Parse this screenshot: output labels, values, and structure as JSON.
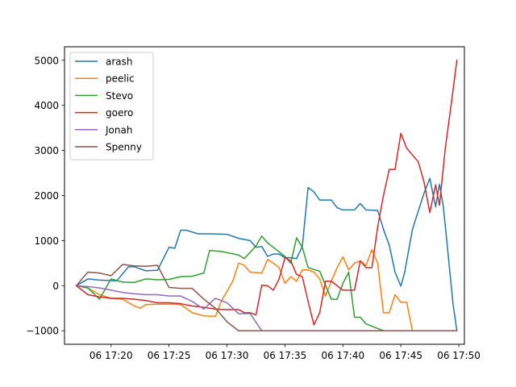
{
  "chart_data": {
    "type": "line",
    "title": "",
    "xlabel": "",
    "ylabel": "",
    "x_axis": {
      "type": "time",
      "range": [
        "06 17:15:59",
        "06 17:50:29"
      ],
      "ticks": [
        {
          "time": "06 17:20",
          "label": "06 17:20"
        },
        {
          "time": "06 17:25",
          "label": "06 17:25"
        },
        {
          "time": "06 17:30",
          "label": "06 17:30"
        },
        {
          "time": "06 17:35",
          "label": "06 17:35"
        },
        {
          "time": "06 17:40",
          "label": "06 17:40"
        },
        {
          "time": "06 17:45",
          "label": "06 17:45"
        },
        {
          "time": "06 17:50",
          "label": "06 17:50"
        }
      ]
    },
    "y_axis": {
      "range": [
        -1300,
        5300
      ],
      "ticks": [
        {
          "value": -1000,
          "label": "−1000"
        },
        {
          "value": 0,
          "label": "0"
        },
        {
          "value": 1000,
          "label": "1000"
        },
        {
          "value": 2000,
          "label": "2000"
        },
        {
          "value": 3000,
          "label": "3000"
        },
        {
          "value": 4000,
          "label": "4000"
        },
        {
          "value": 5000,
          "label": "5000"
        }
      ]
    },
    "grid": false,
    "legend": "upper-left",
    "series": [
      {
        "name": "arash",
        "color": "#1f77b4",
        "points": [
          [
            "06 17:17:00",
            0
          ],
          [
            "06 17:18:00",
            150
          ],
          [
            "06 17:19:00",
            125
          ],
          [
            "06 17:20:00",
            110
          ],
          [
            "06 17:20:30",
            110
          ],
          [
            "06 17:21:30",
            420
          ],
          [
            "06 17:22:00",
            420
          ],
          [
            "06 17:23:00",
            330
          ],
          [
            "06 17:24:00",
            340
          ],
          [
            "06 17:25:00",
            850
          ],
          [
            "06 17:25:30",
            830
          ],
          [
            "06 17:26:00",
            1230
          ],
          [
            "06 17:26:30",
            1230
          ],
          [
            "06 17:27:30",
            1150
          ],
          [
            "06 17:28:30",
            1150
          ],
          [
            "06 17:30:00",
            1140
          ],
          [
            "06 17:31:00",
            1050
          ],
          [
            "06 17:32:00",
            1000
          ],
          [
            "06 17:32:30",
            850
          ],
          [
            "06 17:33:00",
            870
          ],
          [
            "06 17:33:30",
            650
          ],
          [
            "06 17:34:00",
            700
          ],
          [
            "06 17:34:30",
            700
          ],
          [
            "06 17:35:00",
            620
          ],
          [
            "06 17:35:30",
            620
          ],
          [
            "06 17:36:00",
            600
          ],
          [
            "06 17:36:30",
            870
          ],
          [
            "06 17:37:00",
            2180
          ],
          [
            "06 17:37:30",
            2080
          ],
          [
            "06 17:38:00",
            1900
          ],
          [
            "06 17:39:00",
            1900
          ],
          [
            "06 17:39:30",
            1730
          ],
          [
            "06 17:40:00",
            1680
          ],
          [
            "06 17:41:00",
            1680
          ],
          [
            "06 17:41:30",
            1820
          ],
          [
            "06 17:42:00",
            1680
          ],
          [
            "06 17:43:00",
            1670
          ],
          [
            "06 17:43:30",
            1250
          ],
          [
            "06 17:44:00",
            900
          ],
          [
            "06 17:44:30",
            300
          ],
          [
            "06 17:45:00",
            -10
          ],
          [
            "06 17:45:20",
            300
          ],
          [
            "06 17:46:00",
            1250
          ],
          [
            "06 17:46:30",
            1650
          ],
          [
            "06 17:47:00",
            2050
          ],
          [
            "06 17:47:30",
            2380
          ],
          [
            "06 17:48:00",
            1750
          ],
          [
            "06 17:48:20",
            2250
          ],
          [
            "06 17:48:40",
            1750
          ],
          [
            "06 17:49:00",
            900
          ],
          [
            "06 17:49:30",
            -400
          ],
          [
            "06 17:49:50",
            -1000
          ]
        ]
      },
      {
        "name": "peelic",
        "color": "#ff7f0e",
        "points": [
          [
            "06 17:17:00",
            0
          ],
          [
            "06 17:18:00",
            -50
          ],
          [
            "06 17:19:00",
            -200
          ],
          [
            "06 17:20:00",
            -280
          ],
          [
            "06 17:21:00",
            -300
          ],
          [
            "06 17:22:00",
            -450
          ],
          [
            "06 17:22:30",
            -500
          ],
          [
            "06 17:23:00",
            -420
          ],
          [
            "06 17:24:00",
            -410
          ],
          [
            "06 17:25:00",
            -410
          ],
          [
            "06 17:26:00",
            -420
          ],
          [
            "06 17:27:00",
            -600
          ],
          [
            "06 17:28:00",
            -670
          ],
          [
            "06 17:29:00",
            -680
          ],
          [
            "06 17:29:30",
            -350
          ],
          [
            "06 17:30:30",
            100
          ],
          [
            "06 17:31:00",
            500
          ],
          [
            "06 17:31:30",
            450
          ],
          [
            "06 17:32:00",
            300
          ],
          [
            "06 17:33:00",
            280
          ],
          [
            "06 17:33:30",
            580
          ],
          [
            "06 17:34:00",
            500
          ],
          [
            "06 17:34:30",
            400
          ],
          [
            "06 17:35:00",
            50
          ],
          [
            "06 17:35:30",
            200
          ],
          [
            "06 17:36:00",
            100
          ],
          [
            "06 17:36:30",
            350
          ],
          [
            "06 17:37:00",
            350
          ],
          [
            "06 17:37:30",
            300
          ],
          [
            "06 17:38:00",
            150
          ],
          [
            "06 17:38:30",
            -230
          ],
          [
            "06 17:39:00",
            100
          ],
          [
            "06 17:39:30",
            400
          ],
          [
            "06 17:40:00",
            640
          ],
          [
            "06 17:40:30",
            350
          ],
          [
            "06 17:41:00",
            500
          ],
          [
            "06 17:41:30",
            550
          ],
          [
            "06 17:42:00",
            450
          ],
          [
            "06 17:42:30",
            800
          ],
          [
            "06 17:43:00",
            500
          ],
          [
            "06 17:43:30",
            -600
          ],
          [
            "06 17:44:00",
            -600
          ],
          [
            "06 17:44:30",
            -200
          ],
          [
            "06 17:45:00",
            -370
          ],
          [
            "06 17:45:30",
            -370
          ],
          [
            "06 17:46:00",
            -1000
          ],
          [
            "06 17:49:50",
            -1000
          ]
        ]
      },
      {
        "name": "Stevo",
        "color": "#2ca02c",
        "points": [
          [
            "06 17:17:00",
            0
          ],
          [
            "06 17:18:00",
            -50
          ],
          [
            "06 17:19:00",
            -300
          ],
          [
            "06 17:20:00",
            150
          ],
          [
            "06 17:21:00",
            80
          ],
          [
            "06 17:22:00",
            70
          ],
          [
            "06 17:23:00",
            150
          ],
          [
            "06 17:24:00",
            130
          ],
          [
            "06 17:25:00",
            140
          ],
          [
            "06 17:26:00",
            200
          ],
          [
            "06 17:27:00",
            210
          ],
          [
            "06 17:28:00",
            280
          ],
          [
            "06 17:28:30",
            780
          ],
          [
            "06 17:29:30",
            760
          ],
          [
            "06 17:31:00",
            680
          ],
          [
            "06 17:31:30",
            600
          ],
          [
            "06 17:32:30",
            880
          ],
          [
            "06 17:33:00",
            1100
          ],
          [
            "06 17:33:30",
            950
          ],
          [
            "06 17:34:00",
            850
          ],
          [
            "06 17:35:00",
            650
          ],
          [
            "06 17:35:30",
            500
          ],
          [
            "06 17:36:00",
            1060
          ],
          [
            "06 17:36:30",
            850
          ],
          [
            "06 17:37:00",
            400
          ],
          [
            "06 17:38:00",
            320
          ],
          [
            "06 17:39:00",
            -300
          ],
          [
            "06 17:39:30",
            -300
          ],
          [
            "06 17:40:00",
            50
          ],
          [
            "06 17:40:30",
            300
          ],
          [
            "06 17:41:00",
            -700
          ],
          [
            "06 17:41:30",
            -700
          ],
          [
            "06 17:42:00",
            -850
          ],
          [
            "06 17:43:00",
            -950
          ],
          [
            "06 17:43:30",
            -1000
          ],
          [
            "06 17:49:50",
            -1000
          ]
        ]
      },
      {
        "name": "goero",
        "color": "#d62728",
        "points": [
          [
            "06 17:17:00",
            0
          ],
          [
            "06 17:18:00",
            -200
          ],
          [
            "06 17:19:00",
            -250
          ],
          [
            "06 17:20:00",
            -280
          ],
          [
            "06 17:21:00",
            -280
          ],
          [
            "06 17:22:00",
            -300
          ],
          [
            "06 17:23:00",
            -330
          ],
          [
            "06 17:24:00",
            -380
          ],
          [
            "06 17:25:00",
            -380
          ],
          [
            "06 17:26:00",
            -400
          ],
          [
            "06 17:27:00",
            -450
          ],
          [
            "06 17:28:00",
            -480
          ],
          [
            "06 17:29:00",
            -520
          ],
          [
            "06 17:30:00",
            -530
          ],
          [
            "06 17:31:00",
            -530
          ],
          [
            "06 17:31:30",
            -600
          ],
          [
            "06 17:32:00",
            -600
          ],
          [
            "06 17:32:30",
            -650
          ],
          [
            "06 17:33:00",
            10
          ],
          [
            "06 17:33:30",
            0
          ],
          [
            "06 17:34:00",
            -100
          ],
          [
            "06 17:34:30",
            150
          ],
          [
            "06 17:35:00",
            620
          ],
          [
            "06 17:35:30",
            550
          ],
          [
            "06 17:36:00",
            250
          ],
          [
            "06 17:36:30",
            200
          ],
          [
            "06 17:37:00",
            -350
          ],
          [
            "06 17:37:30",
            -870
          ],
          [
            "06 17:38:00",
            -600
          ],
          [
            "06 17:38:30",
            100
          ],
          [
            "06 17:39:00",
            100
          ],
          [
            "06 17:40:00",
            -100
          ],
          [
            "06 17:41:00",
            -100
          ],
          [
            "06 17:41:30",
            550
          ],
          [
            "06 17:42:00",
            400
          ],
          [
            "06 17:42:30",
            400
          ],
          [
            "06 17:43:00",
            1300
          ],
          [
            "06 17:43:30",
            2000
          ],
          [
            "06 17:44:00",
            2580
          ],
          [
            "06 17:44:30",
            2580
          ],
          [
            "06 17:45:00",
            3380
          ],
          [
            "06 17:45:30",
            3050
          ],
          [
            "06 17:46:00",
            2900
          ],
          [
            "06 17:46:30",
            2750
          ],
          [
            "06 17:47:00",
            2300
          ],
          [
            "06 17:47:30",
            1620
          ],
          [
            "06 17:48:00",
            2240
          ],
          [
            "06 17:48:20",
            1780
          ],
          [
            "06 17:48:50",
            3050
          ],
          [
            "06 17:49:20",
            4000
          ],
          [
            "06 17:49:50",
            5000
          ]
        ]
      },
      {
        "name": "Jonah",
        "color": "#9467bd",
        "points": [
          [
            "06 17:17:00",
            0
          ],
          [
            "06 17:18:00",
            -20
          ],
          [
            "06 17:19:00",
            -50
          ],
          [
            "06 17:20:00",
            -100
          ],
          [
            "06 17:21:00",
            -150
          ],
          [
            "06 17:22:00",
            -180
          ],
          [
            "06 17:23:00",
            -200
          ],
          [
            "06 17:24:00",
            -200
          ],
          [
            "06 17:25:00",
            -230
          ],
          [
            "06 17:26:00",
            -230
          ],
          [
            "06 17:27:00",
            -350
          ],
          [
            "06 17:28:00",
            -520
          ],
          [
            "06 17:29:00",
            -280
          ],
          [
            "06 17:30:00",
            -380
          ],
          [
            "06 17:31:00",
            -620
          ],
          [
            "06 17:32:00",
            -620
          ],
          [
            "06 17:33:00",
            -1000
          ],
          [
            "06 17:49:50",
            -1000
          ]
        ]
      },
      {
        "name": "Spenny",
        "color": "#8c564b",
        "points": [
          [
            "06 17:17:00",
            0
          ],
          [
            "06 17:18:00",
            300
          ],
          [
            "06 17:19:00",
            280
          ],
          [
            "06 17:20:00",
            220
          ],
          [
            "06 17:21:00",
            470
          ],
          [
            "06 17:22:00",
            440
          ],
          [
            "06 17:23:00",
            430
          ],
          [
            "06 17:24:00",
            450
          ],
          [
            "06 17:25:00",
            -40
          ],
          [
            "06 17:26:00",
            -60
          ],
          [
            "06 17:27:00",
            -60
          ],
          [
            "06 17:28:00",
            -300
          ],
          [
            "06 17:29:00",
            -500
          ],
          [
            "06 17:30:00",
            -800
          ],
          [
            "06 17:31:00",
            -1000
          ],
          [
            "06 17:49:50",
            -1000
          ]
        ]
      }
    ]
  }
}
